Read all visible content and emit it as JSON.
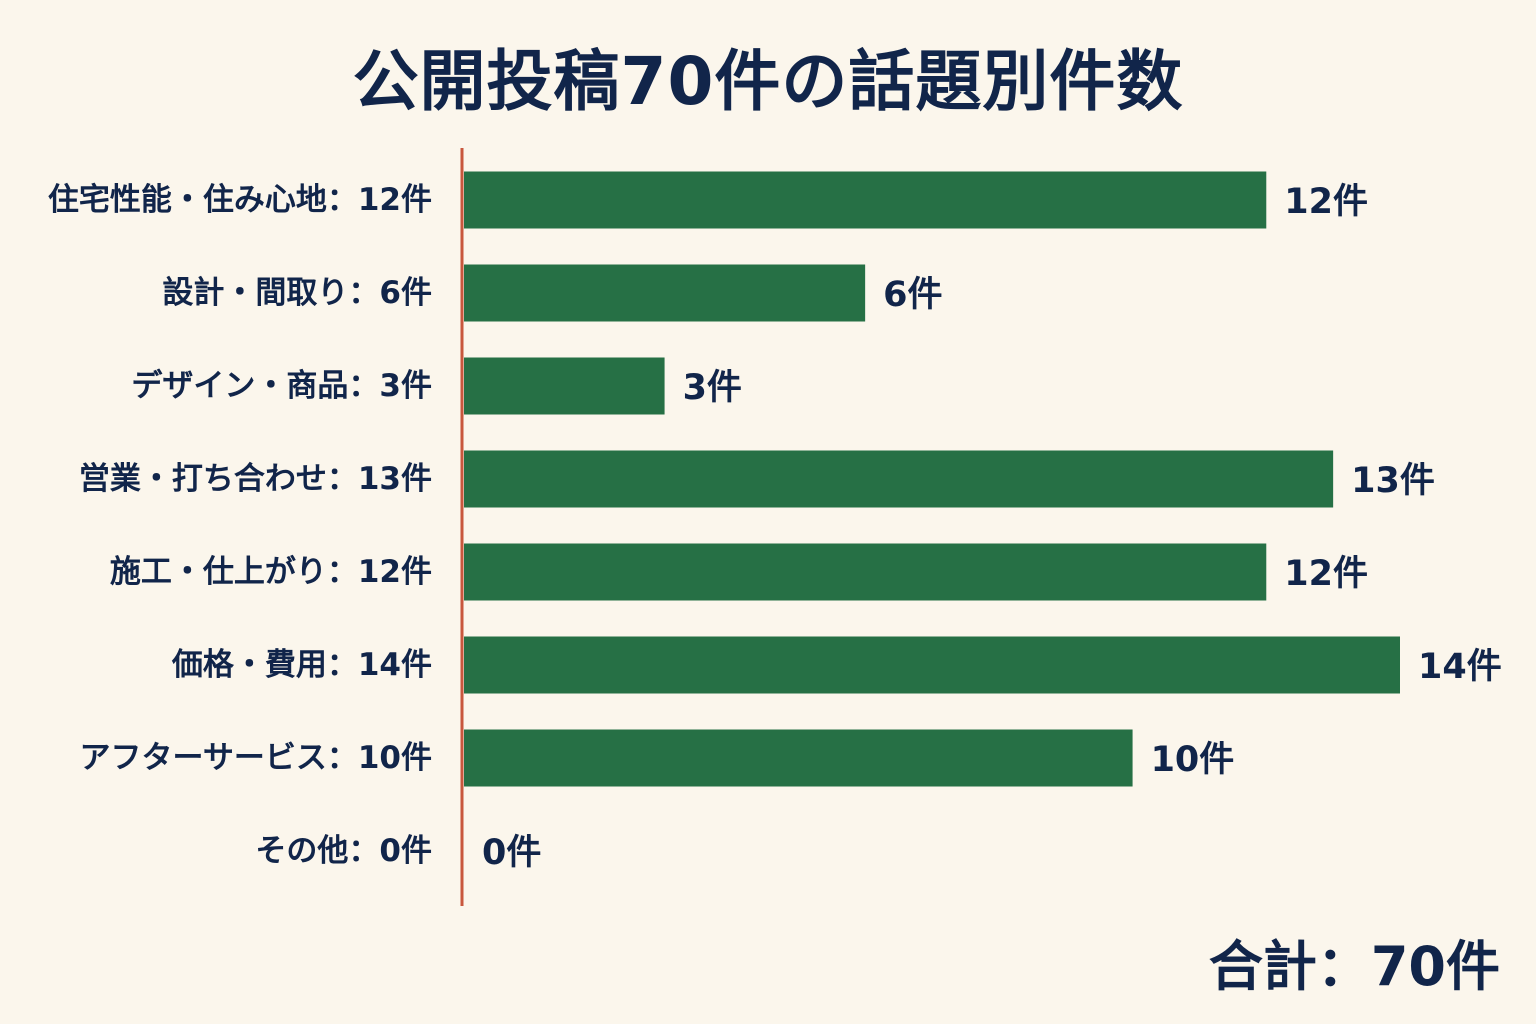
{
  "chart_data": {
    "type": "bar",
    "orientation": "horizontal",
    "title": "公開投稿70件の話題別件数",
    "categories": [
      "住宅性能・住み心地：12件",
      "設計・間取り：6件",
      "デザイン・商品：3件",
      "営業・打ち合わせ：13件",
      "施工・仕上がり：12件",
      "価格・費用：14件",
      "アフターサービス：10件",
      "その他：0件"
    ],
    "values": [
      12,
      6,
      3,
      13,
      12,
      14,
      10,
      0
    ],
    "data_labels": [
      "12件",
      "6件",
      "3件",
      "13件",
      "12件",
      "14件",
      "10件",
      "0件"
    ],
    "xlabel": "",
    "ylabel": "",
    "xlim": [
      0,
      14
    ],
    "grid": false,
    "legend": "none",
    "bar_color": "#267045",
    "axis_color": "#c8573d"
  },
  "summary": {
    "total": "合計：70件"
  }
}
